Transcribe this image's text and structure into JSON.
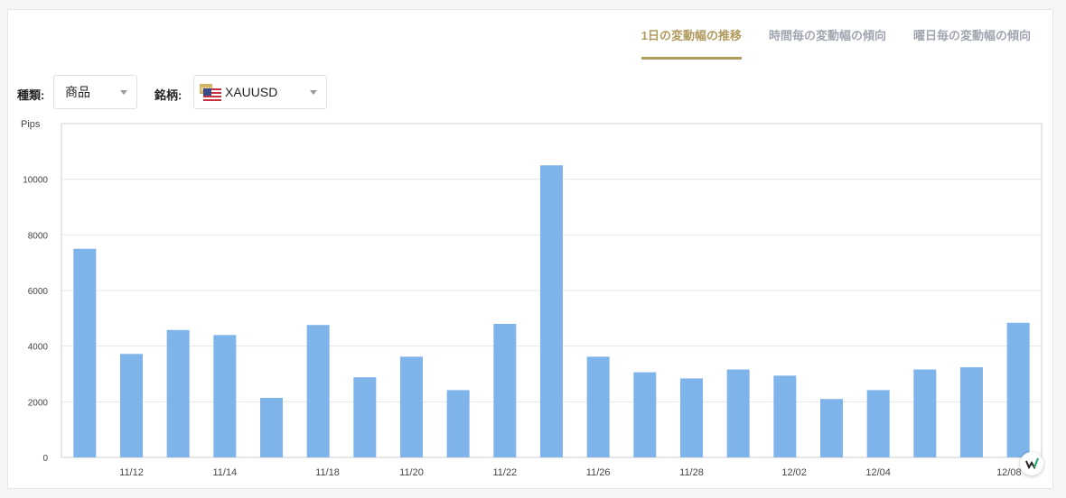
{
  "tabs": [
    {
      "label": "1日の変動幅の推移",
      "active": true
    },
    {
      "label": "時間毎の変動幅の傾向",
      "active": false
    },
    {
      "label": "曜日毎の変動幅の傾向",
      "active": false
    }
  ],
  "filters": {
    "type_label": "種類:",
    "type_value": "商品",
    "symbol_label": "銘柄:",
    "symbol_value": "XAUUSD",
    "symbol_flag_text": "XAU"
  },
  "colors": {
    "bar": "#7eb4ea",
    "accent": "#b09a5e",
    "grid": "#e6e6e6"
  },
  "chart_data": {
    "type": "bar",
    "ylabel": "Pips",
    "ylim": [
      0,
      12000
    ],
    "yticks": [
      0,
      2000,
      4000,
      6000,
      8000,
      10000
    ],
    "grid": true,
    "x_ticks": [
      {
        "index": 1,
        "label": "11/12"
      },
      {
        "index": 3,
        "label": "11/14"
      },
      {
        "index": 5.2,
        "label": "11/18"
      },
      {
        "index": 7,
        "label": "11/20"
      },
      {
        "index": 9,
        "label": "11/22"
      },
      {
        "index": 11,
        "label": "11/26"
      },
      {
        "index": 13,
        "label": "11/28"
      },
      {
        "index": 15.2,
        "label": "12/02"
      },
      {
        "index": 17,
        "label": "12/04"
      },
      {
        "index": 19.8,
        "label": "12/08"
      }
    ],
    "values": [
      7500,
      3720,
      4580,
      4400,
      2140,
      4760,
      2880,
      3620,
      2420,
      4800,
      10500,
      3620,
      3060,
      2840,
      3160,
      2940,
      2100,
      2420,
      3160,
      3240,
      4840
    ]
  }
}
